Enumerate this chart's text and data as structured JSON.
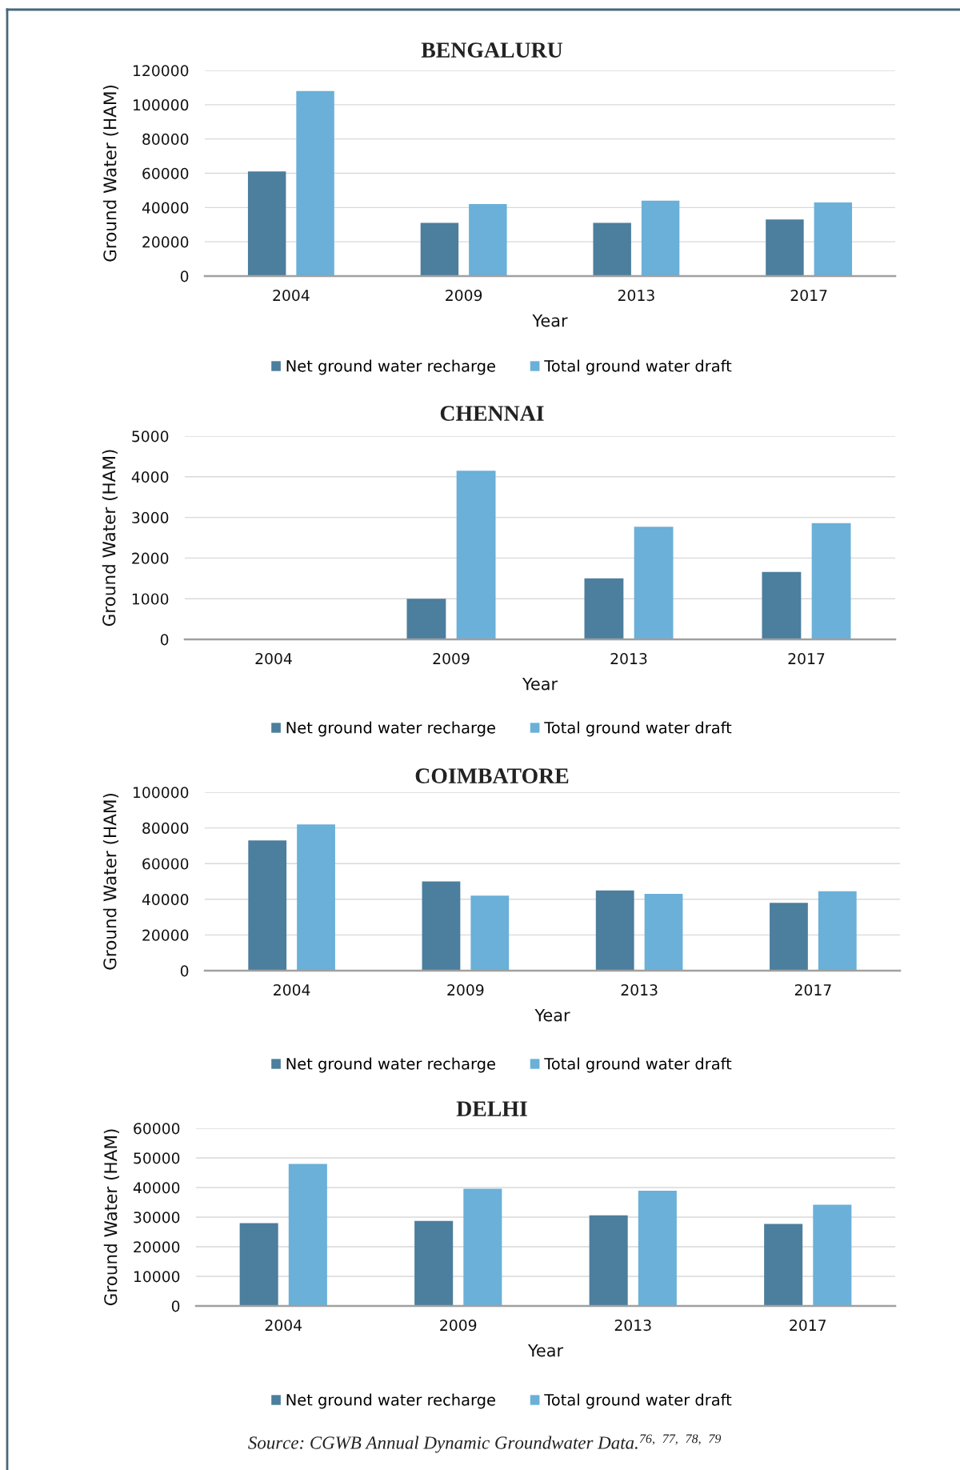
{
  "chart_data": [
    {
      "type": "bar",
      "title": "BENGALURU",
      "xlabel": "Year",
      "ylabel": "Ground Water (HAM)",
      "categories": [
        "2004",
        "2009",
        "2013",
        "2017"
      ],
      "series": [
        {
          "name": "Net ground water recharge",
          "color": "#4c7e9d",
          "values": [
            61000,
            31000,
            31000,
            33000
          ]
        },
        {
          "name": "Total ground water draft",
          "color": "#6ab0d8",
          "values": [
            108000,
            42000,
            44000,
            43000
          ]
        }
      ],
      "ylim": [
        0,
        120000
      ],
      "yticks": [
        0,
        20000,
        40000,
        60000,
        80000,
        100000,
        120000
      ],
      "grid": "y",
      "legend": "bottom"
    },
    {
      "type": "bar",
      "title": "CHENNAI",
      "xlabel": "Year",
      "ylabel": "Ground Water (HAM)",
      "categories": [
        "2004",
        "2009",
        "2013",
        "2017"
      ],
      "series": [
        {
          "name": "Net ground water recharge",
          "color": "#4c7e9d",
          "values": [
            null,
            1000,
            1500,
            1660
          ]
        },
        {
          "name": "Total ground water draft",
          "color": "#6ab0d8",
          "values": [
            null,
            4150,
            2770,
            2860
          ]
        }
      ],
      "ylim": [
        0,
        5000
      ],
      "yticks": [
        0,
        1000,
        2000,
        3000,
        4000,
        5000
      ],
      "grid": "y",
      "legend": "bottom"
    },
    {
      "type": "bar",
      "title": "COIMBATORE",
      "xlabel": "Year",
      "ylabel": "Ground Water (HAM)",
      "categories": [
        "2004",
        "2009",
        "2013",
        "2017"
      ],
      "series": [
        {
          "name": "Net ground water recharge",
          "color": "#4c7e9d",
          "values": [
            73000,
            50000,
            45000,
            38000
          ]
        },
        {
          "name": "Total ground water draft",
          "color": "#6ab0d8",
          "values": [
            82000,
            42000,
            43000,
            44500
          ]
        }
      ],
      "ylim": [
        0,
        100000
      ],
      "yticks": [
        0,
        20000,
        40000,
        60000,
        80000,
        100000
      ],
      "grid": "y",
      "legend": "bottom"
    },
    {
      "type": "bar",
      "title": "DELHI",
      "xlabel": "Year",
      "ylabel": "Ground Water (HAM)",
      "categories": [
        "2004",
        "2009",
        "2013",
        "2017"
      ],
      "series": [
        {
          "name": "Net ground water recharge",
          "color": "#4c7e9d",
          "values": [
            28000,
            28700,
            30600,
            27700
          ]
        },
        {
          "name": "Total ground water draft",
          "color": "#6ab0d8",
          "values": [
            48000,
            39600,
            38900,
            34200
          ]
        }
      ],
      "ylim": [
        0,
        60000
      ],
      "yticks": [
        0,
        10000,
        20000,
        30000,
        40000,
        50000,
        60000
      ],
      "grid": "y",
      "legend": "bottom",
      "annotations": [
        "Source: CGWB Annual Dynamic Groundwater Data.$^{76, 77, 78, 79}$"
      ]
    }
  ]
}
